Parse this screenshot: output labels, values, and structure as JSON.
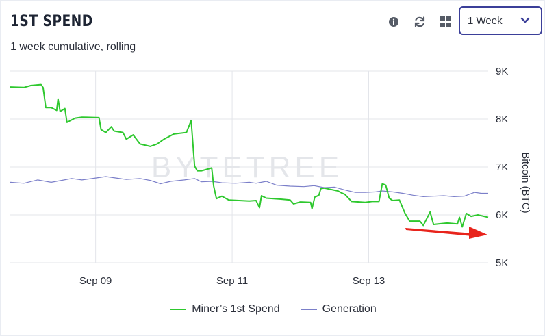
{
  "header": {
    "title": "1ST SPEND",
    "subtitle": "1 week cumulative, rolling",
    "icons": [
      "info-icon",
      "refresh-icon",
      "grid-icon"
    ],
    "range_select": {
      "value": "1 Week"
    }
  },
  "watermark": "BYTETREE",
  "colors": {
    "miner": "#2ec82e",
    "generation": "#7b7fc9",
    "accent": "#3b3f99",
    "arrow": "#e8241c"
  },
  "legend": {
    "miner": "Miner’s 1st Spend",
    "generation": "Generation"
  },
  "chart_data": {
    "type": "line",
    "ylabel": "Bitcoin (BTC)",
    "y_ticks": [
      "9K",
      "8K",
      "7K",
      "6K",
      "5K"
    ],
    "ylim": [
      5000,
      9000
    ],
    "x_ticks": [
      {
        "label": "Sep 09",
        "t": 1.25
      },
      {
        "label": "Sep 11",
        "t": 3.25
      },
      {
        "label": "Sep 13",
        "t": 5.25
      }
    ],
    "xlim": [
      0,
      7
    ],
    "grid": true,
    "legend_position": "bottom",
    "series": [
      {
        "name": "Miner’s 1st Spend",
        "color": "#2ec82e",
        "points": [
          [
            0.0,
            8670
          ],
          [
            0.2,
            8660
          ],
          [
            0.3,
            8700
          ],
          [
            0.45,
            8720
          ],
          [
            0.48,
            8660
          ],
          [
            0.52,
            8240
          ],
          [
            0.6,
            8240
          ],
          [
            0.68,
            8180
          ],
          [
            0.7,
            8420
          ],
          [
            0.73,
            8160
          ],
          [
            0.8,
            8220
          ],
          [
            0.83,
            7930
          ],
          [
            0.95,
            8020
          ],
          [
            1.05,
            8040
          ],
          [
            1.3,
            8030
          ],
          [
            1.33,
            7780
          ],
          [
            1.4,
            7720
          ],
          [
            1.48,
            7840
          ],
          [
            1.52,
            7750
          ],
          [
            1.65,
            7720
          ],
          [
            1.7,
            7580
          ],
          [
            1.8,
            7670
          ],
          [
            1.9,
            7480
          ],
          [
            2.05,
            7430
          ],
          [
            2.15,
            7480
          ],
          [
            2.25,
            7580
          ],
          [
            2.4,
            7690
          ],
          [
            2.58,
            7720
          ],
          [
            2.65,
            7970
          ],
          [
            2.7,
            7020
          ],
          [
            2.74,
            6920
          ],
          [
            2.8,
            6920
          ],
          [
            2.95,
            6980
          ],
          [
            2.98,
            6600
          ],
          [
            3.02,
            6340
          ],
          [
            3.1,
            6390
          ],
          [
            3.2,
            6310
          ],
          [
            3.5,
            6290
          ],
          [
            3.6,
            6300
          ],
          [
            3.65,
            6150
          ],
          [
            3.68,
            6400
          ],
          [
            3.75,
            6350
          ],
          [
            3.95,
            6330
          ],
          [
            4.1,
            6310
          ],
          [
            4.15,
            6230
          ],
          [
            4.25,
            6270
          ],
          [
            4.4,
            6260
          ],
          [
            4.42,
            6130
          ],
          [
            4.46,
            6370
          ],
          [
            4.52,
            6410
          ],
          [
            4.55,
            6550
          ],
          [
            4.6,
            6560
          ],
          [
            4.8,
            6500
          ],
          [
            4.85,
            6460
          ],
          [
            4.9,
            6430
          ],
          [
            5.0,
            6280
          ],
          [
            5.2,
            6260
          ],
          [
            5.3,
            6280
          ],
          [
            5.4,
            6280
          ],
          [
            5.45,
            6650
          ],
          [
            5.5,
            6620
          ],
          [
            5.55,
            6350
          ],
          [
            5.6,
            6300
          ],
          [
            5.7,
            6310
          ],
          [
            5.78,
            6040
          ],
          [
            5.85,
            5870
          ],
          [
            6.0,
            5870
          ],
          [
            6.05,
            5780
          ],
          [
            6.15,
            6060
          ],
          [
            6.2,
            5800
          ],
          [
            6.4,
            5830
          ],
          [
            6.55,
            5810
          ],
          [
            6.58,
            5950
          ],
          [
            6.62,
            5750
          ],
          [
            6.68,
            6030
          ],
          [
            6.75,
            5970
          ],
          [
            6.85,
            6000
          ],
          [
            7.0,
            5950
          ]
        ]
      },
      {
        "name": "Generation",
        "color": "#7b7fc9",
        "points": [
          [
            0.0,
            6680
          ],
          [
            0.2,
            6660
          ],
          [
            0.4,
            6730
          ],
          [
            0.6,
            6680
          ],
          [
            0.75,
            6720
          ],
          [
            0.9,
            6760
          ],
          [
            1.05,
            6730
          ],
          [
            1.25,
            6770
          ],
          [
            1.4,
            6800
          ],
          [
            1.55,
            6770
          ],
          [
            1.7,
            6740
          ],
          [
            1.9,
            6760
          ],
          [
            2.05,
            6720
          ],
          [
            2.2,
            6650
          ],
          [
            2.35,
            6700
          ],
          [
            2.55,
            6730
          ],
          [
            2.7,
            6760
          ],
          [
            2.8,
            6690
          ],
          [
            2.95,
            6700
          ],
          [
            3.1,
            6670
          ],
          [
            3.3,
            6660
          ],
          [
            3.5,
            6680
          ],
          [
            3.6,
            6660
          ],
          [
            3.75,
            6700
          ],
          [
            3.9,
            6620
          ],
          [
            4.1,
            6600
          ],
          [
            4.3,
            6590
          ],
          [
            4.45,
            6610
          ],
          [
            4.6,
            6570
          ],
          [
            4.75,
            6580
          ],
          [
            4.9,
            6520
          ],
          [
            5.05,
            6470
          ],
          [
            5.2,
            6470
          ],
          [
            5.35,
            6480
          ],
          [
            5.45,
            6500
          ],
          [
            5.6,
            6480
          ],
          [
            5.75,
            6450
          ],
          [
            5.9,
            6410
          ],
          [
            6.05,
            6380
          ],
          [
            6.2,
            6390
          ],
          [
            6.35,
            6400
          ],
          [
            6.5,
            6380
          ],
          [
            6.65,
            6390
          ],
          [
            6.8,
            6470
          ],
          [
            6.9,
            6450
          ],
          [
            7.0,
            6450
          ]
        ]
      }
    ]
  }
}
